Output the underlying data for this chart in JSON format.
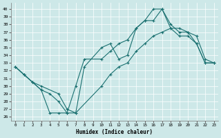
{
  "xlabel": "Humidex (Indice chaleur)",
  "bg_color": "#cde8e8",
  "line_color": "#1a7070",
  "xlim": [
    -0.5,
    23.5
  ],
  "ylim": [
    25.5,
    40.8
  ],
  "yticks": [
    26,
    27,
    28,
    29,
    30,
    31,
    32,
    33,
    34,
    35,
    36,
    37,
    38,
    39,
    40
  ],
  "xticks": [
    0,
    1,
    2,
    3,
    4,
    5,
    6,
    7,
    8,
    9,
    10,
    11,
    12,
    13,
    14,
    15,
    16,
    17,
    18,
    19,
    20,
    21,
    22,
    23
  ],
  "line1_x": [
    0,
    1,
    2,
    3,
    4,
    5,
    6,
    7,
    8,
    10,
    11,
    12,
    13,
    14,
    15,
    16,
    17,
    18,
    19,
    20,
    21,
    22,
    23
  ],
  "line1_y": [
    32.5,
    31.5,
    30.5,
    29.5,
    26.5,
    26.5,
    26.5,
    26.5,
    32.5,
    35.0,
    35.5,
    33.5,
    34.0,
    37.5,
    38.5,
    38.5,
    40.0,
    38.0,
    37.0,
    37.0,
    35.5,
    33.0,
    33.0
  ],
  "line2_x": [
    0,
    1,
    2,
    3,
    4,
    5,
    6,
    7,
    8,
    10,
    11,
    12,
    13,
    14,
    15,
    16,
    17,
    18,
    19,
    20,
    21,
    22,
    23
  ],
  "line2_y": [
    32.5,
    31.5,
    30.5,
    29.5,
    29.0,
    28.0,
    26.5,
    30.0,
    33.5,
    33.5,
    34.5,
    35.5,
    36.0,
    37.5,
    38.5,
    40.0,
    40.0,
    37.5,
    36.5,
    36.5,
    35.5,
    33.0,
    33.0
  ],
  "line3_x": [
    0,
    1,
    2,
    3,
    5,
    6,
    7,
    10,
    11,
    12,
    13,
    14,
    15,
    16,
    17,
    18,
    19,
    20,
    21,
    22,
    23
  ],
  "line3_y": [
    32.5,
    31.5,
    30.5,
    30.0,
    29.0,
    27.0,
    26.5,
    30.0,
    31.5,
    32.5,
    33.0,
    34.5,
    35.5,
    36.5,
    37.0,
    37.5,
    37.5,
    37.0,
    36.5,
    33.5,
    33.0
  ]
}
